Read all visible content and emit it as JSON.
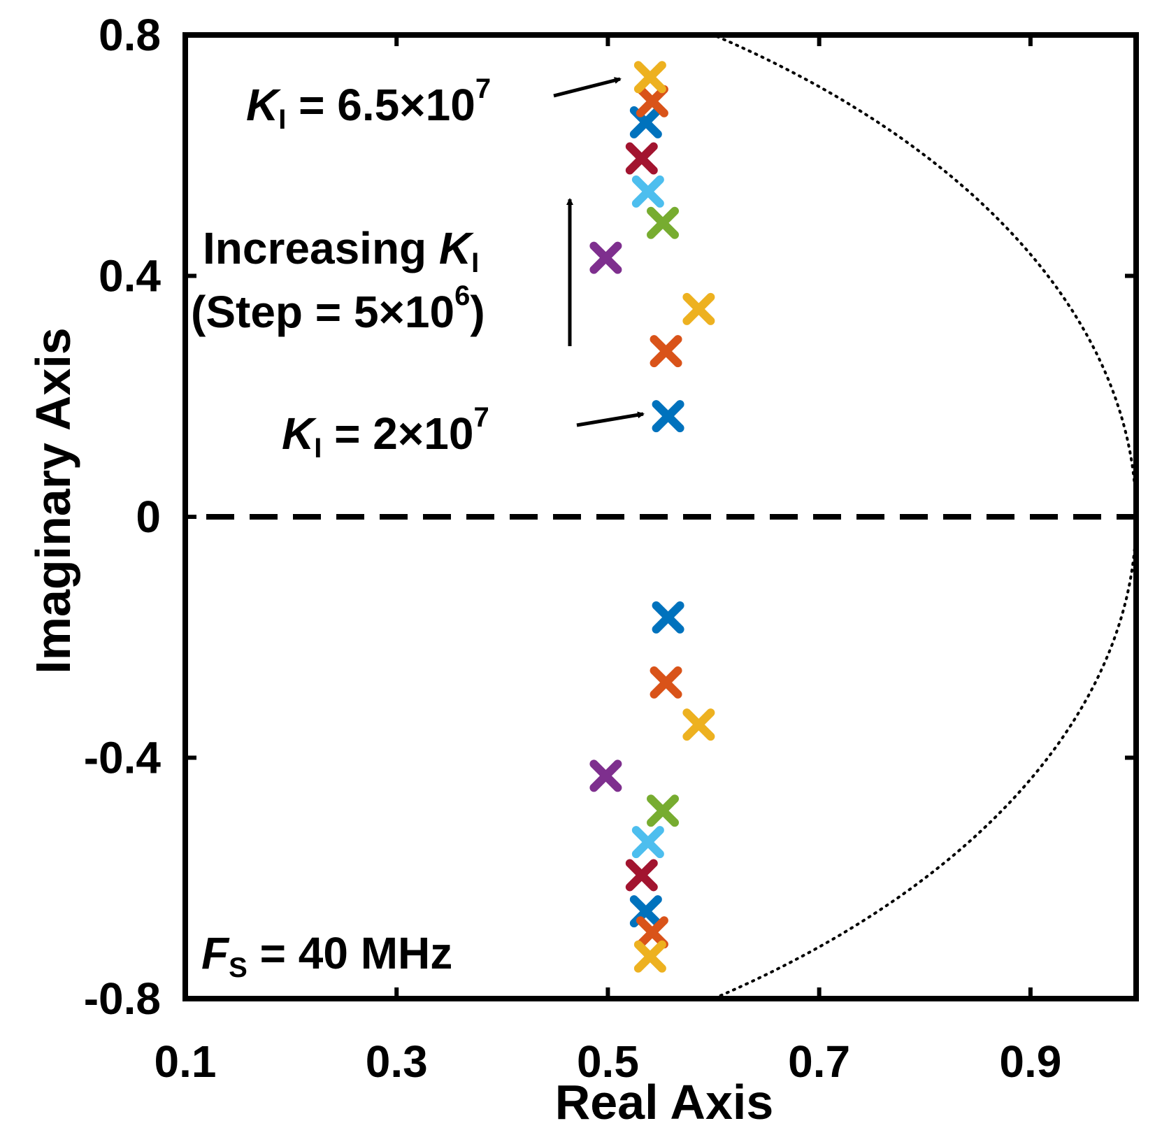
{
  "chart_data": {
    "type": "scatter",
    "title": "",
    "xlabel": "Real Axis",
    "ylabel": "Imaginary Axis",
    "xlim": [
      0.1,
      1.0
    ],
    "ylim": [
      -0.8,
      0.8
    ],
    "xticks": [
      0.1,
      0.3,
      0.5,
      0.7,
      0.9
    ],
    "xtick_labels": [
      "0.1",
      "0.3",
      "0.5",
      "0.7",
      "0.9"
    ],
    "yticks": [
      -0.8,
      -0.4,
      0,
      0.4,
      0.8
    ],
    "ytick_labels": [
      "-0.8",
      "-0.4",
      "0",
      "0.4",
      "0.8"
    ],
    "grid": false,
    "legend": "none",
    "marker": "x",
    "reference_lines": {
      "unit_circle": "dotted",
      "real_axis": "dashed"
    },
    "series": [
      {
        "color": "#0072BD",
        "points": [
          [
            0.557,
            0.167
          ],
          [
            0.557,
            -0.167
          ]
        ]
      },
      {
        "color": "#D95319",
        "points": [
          [
            0.555,
            0.275
          ],
          [
            0.555,
            -0.275
          ]
        ]
      },
      {
        "color": "#EDB120",
        "points": [
          [
            0.586,
            0.345
          ],
          [
            0.586,
            -0.345
          ]
        ]
      },
      {
        "color": "#7E2F8E",
        "points": [
          [
            0.498,
            0.43
          ],
          [
            0.498,
            -0.43
          ]
        ]
      },
      {
        "color": "#77AC30",
        "points": [
          [
            0.552,
            0.488
          ],
          [
            0.552,
            -0.488
          ]
        ]
      },
      {
        "color": "#4DBEEE",
        "points": [
          [
            0.538,
            0.54
          ],
          [
            0.538,
            -0.54
          ]
        ]
      },
      {
        "color": "#A2142F",
        "points": [
          [
            0.532,
            0.595
          ],
          [
            0.532,
            -0.595
          ]
        ]
      },
      {
        "color": "#0072BD",
        "points": [
          [
            0.536,
            0.655
          ],
          [
            0.536,
            -0.655
          ]
        ]
      },
      {
        "color": "#D95319",
        "points": [
          [
            0.542,
            0.69
          ],
          [
            0.542,
            -0.69
          ]
        ]
      },
      {
        "color": "#EDB120",
        "points": [
          [
            0.54,
            0.73
          ],
          [
            0.54,
            -0.73
          ]
        ]
      }
    ],
    "annotations": {
      "top": {
        "symbol": "K",
        "subscript": "I",
        "text": " = 6.5×10",
        "superscript": "7"
      },
      "increasing_line1": {
        "text": "Increasing ",
        "symbol": "K",
        "subscript": "I"
      },
      "increasing_line2": {
        "text": "(Step = 5×10",
        "superscript": "6",
        "close": ")"
      },
      "bottom": {
        "symbol": "K",
        "subscript": "I",
        "text": " = 2×10",
        "superscript": "7"
      },
      "fs": {
        "symbol": "F",
        "subscript": "S",
        "text": " = 40 MHz"
      }
    }
  }
}
